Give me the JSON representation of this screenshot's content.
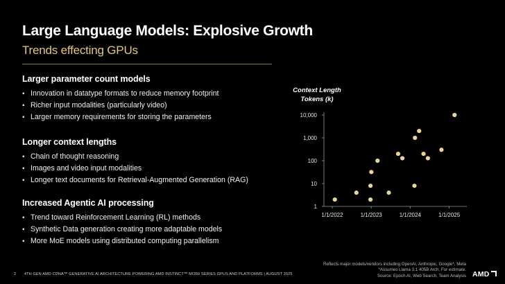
{
  "slide": {
    "title": "Large Language Models: Explosive Growth",
    "subtitle": "Trends effecting GPUs"
  },
  "sections": [
    {
      "heading": "Larger parameter count models",
      "bullets": [
        "Innovation in datatype formats to reduce memory footprint",
        "Richer input modalities (particularly video)",
        "Larger memory requirements for storing the parameters"
      ]
    },
    {
      "heading": "Longer context lengths",
      "bullets": [
        "Chain of thought reasoning",
        "Images and video input modalities",
        "Longer text documents for Retrieval-Augmented Generation (RAG)"
      ]
    },
    {
      "heading": "Increased Agentic AI processing",
      "bullets": [
        "Trend toward Reinforcement Learning (RL)  methods",
        "Synthetic Data generation creating more adaptable models",
        "More MoE models using distributed computing parallelism"
      ]
    }
  ],
  "bullet_glyph": "▪",
  "chart_data": {
    "type": "scatter",
    "title_lines": [
      "Context Length",
      "Tokens (k)"
    ],
    "yscale": "log",
    "ylim": [
      1,
      10000
    ],
    "yticks": [
      1,
      10,
      100,
      1000,
      10000
    ],
    "ytick_labels": [
      "1",
      "10",
      "100",
      "1,000",
      "10,000"
    ],
    "xlim": [
      "2021-10-15",
      "2025-06-15"
    ],
    "xticks": [
      "2022-01-01",
      "2023-01-01",
      "2024-01-01",
      "2025-01-01"
    ],
    "xtick_labels": [
      "1/1/2022",
      "1/1/2023",
      "1/1/2024",
      "1/1/2025"
    ],
    "grid": false,
    "marker_color": "#e8d49a",
    "points": [
      {
        "x": "2022-01-25",
        "y": 2
      },
      {
        "x": "2022-08-15",
        "y": 4
      },
      {
        "x": "2022-12-25",
        "y": 2
      },
      {
        "x": "2022-12-25",
        "y": 8
      },
      {
        "x": "2023-01-02",
        "y": 32
      },
      {
        "x": "2023-03-01",
        "y": 100
      },
      {
        "x": "2023-06-15",
        "y": 4
      },
      {
        "x": "2023-09-10",
        "y": 200
      },
      {
        "x": "2023-10-20",
        "y": 128
      },
      {
        "x": "2024-02-10",
        "y": 8
      },
      {
        "x": "2024-02-15",
        "y": 1000
      },
      {
        "x": "2024-03-25",
        "y": 2000
      },
      {
        "x": "2024-05-05",
        "y": 200
      },
      {
        "x": "2024-06-15",
        "y": 128
      },
      {
        "x": "2024-10-20",
        "y": 300
      },
      {
        "x": "2025-02-20",
        "y": 10000
      }
    ]
  },
  "footnote_lines": [
    "Reflects major models/vendors including OpenAI, Anthropic, Google*, Meta",
    "*Assumes Llama 3.1 405B Arch. For estimate.",
    "Source: Epoch AI, Web Search, Team Analysis"
  ],
  "footer": {
    "page": "2",
    "text": "4TH GEN AMD CDNA™ GENERATIVE AI ARCHITECTURE POWERING AMD INSTINCT™ MI350 SERIES GPUS AND PLATFORMS  |  AUGUST 2025"
  },
  "brand": {
    "logo_text": "AMD",
    "icon": "amd-arrow-icon"
  }
}
